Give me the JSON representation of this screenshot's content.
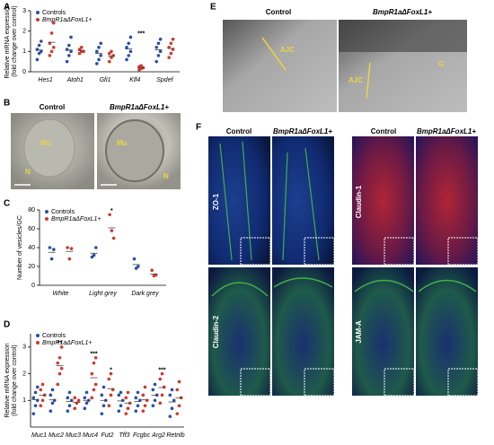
{
  "labels": [
    "A",
    "B",
    "C",
    "D",
    "E",
    "F"
  ],
  "chart_data": [
    {
      "type": "dot",
      "ylabel": [
        "Relative mRNA expression",
        "(fold change over control)"
      ],
      "categories": [
        "Hes1",
        "Atoh1",
        "Gfi1",
        "Klf4",
        "Spdef"
      ],
      "ylim": [
        0,
        3
      ],
      "yticks": [
        0,
        1,
        2,
        3
      ],
      "series": [
        {
          "name": "Controls",
          "color": "#2a4fa8",
          "values": [
            1.07,
            1.07,
            0.9,
            1.12,
            1.08
          ],
          "points": [
            [
              0.6,
              0.9,
              1.0,
              1.1,
              1.3,
              1.5
            ],
            [
              0.5,
              0.8,
              1.0,
              1.1,
              1.3,
              1.7
            ],
            [
              0.4,
              0.6,
              0.8,
              1.0,
              1.2,
              1.4
            ],
            [
              0.6,
              0.8,
              1.0,
              1.2,
              1.4,
              1.7
            ],
            [
              0.5,
              0.8,
              1.0,
              1.2,
              1.4,
              1.6
            ]
          ]
        },
        {
          "name": "BmpR1aΔFoxL1+",
          "color": "#d03a2f",
          "values": [
            1.45,
            1.04,
            0.78,
            0.2,
            1.15
          ],
          "points": [
            [
              0.8,
              1.0,
              1.2,
              1.4,
              1.9,
              2.4
            ],
            [
              0.9,
              1.0,
              1.0,
              1.1,
              1.2
            ],
            [
              0.5,
              0.7,
              0.8,
              0.9,
              1.0
            ],
            [
              0.1,
              0.15,
              0.2,
              0.25,
              0.3
            ],
            [
              0.7,
              0.9,
              1.1,
              1.2,
              1.4,
              1.6
            ]
          ]
        }
      ],
      "significance": [
        null,
        null,
        null,
        "***",
        null
      ]
    },
    {
      "type": "dot",
      "ylabel": [
        "Number of vesicles/GC"
      ],
      "categories": [
        "White",
        "Light grey",
        "Dark grey"
      ],
      "ylim": [
        0,
        80
      ],
      "yticks": [
        0,
        20,
        40,
        60,
        80
      ],
      "series": [
        {
          "name": "Controls",
          "color": "#2a4fa8",
          "values": [
            35,
            34,
            22
          ],
          "points": [
            [
              40,
              28,
              38
            ],
            [
              30,
              32,
              40
            ],
            [
              28,
              18,
              20
            ]
          ]
        },
        {
          "name": "BmpR1aΔFoxL1+",
          "color": "#d03a2f",
          "values": [
            36,
            61,
            12
          ],
          "points": [
            [
              40,
              28,
              39
            ],
            [
              75,
              58,
              50
            ],
            [
              16,
              10,
              11
            ]
          ]
        }
      ],
      "significance": [
        null,
        "*",
        null
      ]
    },
    {
      "type": "dot",
      "ylabel": [
        "Relative mRNA expression",
        "(fold change over control)"
      ],
      "categories": [
        "Muc1",
        "Muc2",
        "Muc3",
        "Muc4",
        "Fut2",
        "Tff3",
        "Fcgbc",
        "Arg2",
        "Retnlb"
      ],
      "ylim": [
        0,
        3.5
      ],
      "yticks": [
        1,
        2,
        3
      ],
      "series": [
        {
          "name": "Controls",
          "color": "#2a4fa8",
          "values": [
            1.03,
            1.02,
            0.96,
            1.0,
            1.0,
            0.98,
            0.96,
            1.2,
            0.94
          ],
          "points": [
            [
              0.5,
              0.8,
              1.0,
              1.1,
              1.3,
              1.5
            ],
            [
              0.6,
              0.9,
              1.0,
              1.2,
              1.4
            ],
            [
              0.6,
              0.8,
              1.0,
              1.1,
              1.3
            ],
            [
              0.7,
              0.9,
              1.0,
              1.1,
              1.3
            ],
            [
              0.5,
              0.8,
              1.0,
              1.2,
              1.5
            ],
            [
              0.6,
              0.8,
              1.0,
              1.2,
              1.3
            ],
            [
              0.6,
              0.8,
              1.0,
              1.1,
              1.3
            ],
            [
              0.8,
              1.0,
              1.2,
              1.4,
              1.6
            ],
            [
              0.4,
              0.7,
              1.0,
              1.2,
              1.4
            ]
          ]
        },
        {
          "name": "BmpR1aΔFoxL1+",
          "color": "#d03a2f",
          "values": [
            1.2,
            2.3,
            0.93,
            1.85,
            1.44,
            0.9,
            1.02,
            1.48,
            1.1
          ],
          "points": [
            [
              0.8,
              1.0,
              1.2,
              1.4,
              1.6
            ],
            [
              1.6,
              2.0,
              2.2,
              2.4,
              2.6,
              3.0
            ],
            [
              0.7,
              0.9,
              1.0,
              1.1
            ],
            [
              1.1,
              1.4,
              1.6,
              2.0,
              2.4,
              2.6
            ],
            [
              0.8,
              1.2,
              1.4,
              1.8,
              2.0
            ],
            [
              0.5,
              0.7,
              0.9,
              1.1,
              1.3
            ],
            [
              0.6,
              0.8,
              1.0,
              1.2,
              1.5
            ],
            [
              0.9,
              1.2,
              1.5,
              1.8,
              2.0
            ],
            [
              0.5,
              0.8,
              1.1,
              1.4,
              1.7
            ]
          ]
        }
      ],
      "significance": [
        null,
        "**",
        null,
        "***",
        "*",
        null,
        null,
        "***",
        null
      ]
    }
  ],
  "panel_b": {
    "headers": [
      "Control",
      "BmpR1aΔFoxL1+"
    ],
    "marks": [
      "Mu",
      "N",
      "Mu",
      "N"
    ]
  },
  "panel_e": {
    "headers": [
      "Control",
      "BmpR1aΔFoxL1+"
    ],
    "marks": [
      "AJC",
      "AJC",
      "G"
    ]
  },
  "panel_f": {
    "headers": [
      "Control",
      "BmpR1aΔFoxL1+",
      "Control",
      "BmpR1aΔFoxL1+"
    ],
    "rows": [
      "ZO-1",
      "Claudin-2",
      "Claudin-1",
      "JAM-A"
    ]
  }
}
